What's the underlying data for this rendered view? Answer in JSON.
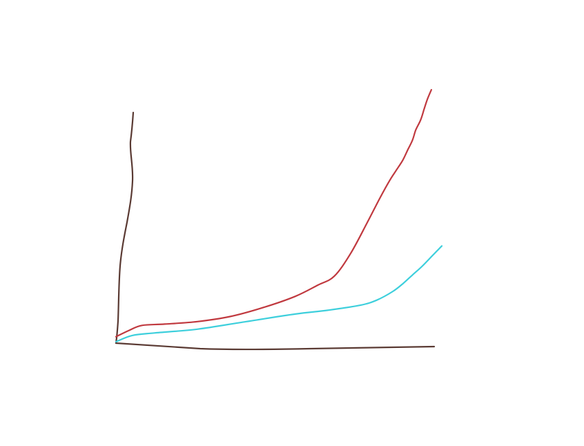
{
  "chart_data": {
    "type": "line",
    "title": "",
    "xlabel": "",
    "ylabel": "",
    "grid": false,
    "legend": "none",
    "xlim": [
      0,
      1
    ],
    "ylim": [
      0,
      1
    ],
    "colors": {
      "axis": "#5a3a33",
      "red_series": "#c0393f",
      "cyan_series": "#3dcfdc"
    },
    "series": [
      {
        "color_key": "red_series",
        "x": [
          0.0,
          0.04,
          0.08,
          0.15,
          0.25,
          0.35,
          0.45,
          0.55,
          0.62,
          0.67,
          0.72,
          0.77,
          0.81,
          0.84,
          0.86,
          0.88,
          0.895,
          0.91,
          0.92,
          0.935,
          0.945,
          0.955,
          0.968
        ],
        "y": [
          0.02,
          0.045,
          0.065,
          0.07,
          0.08,
          0.1,
          0.135,
          0.18,
          0.225,
          0.26,
          0.35,
          0.47,
          0.57,
          0.64,
          0.68,
          0.72,
          0.76,
          0.8,
          0.84,
          0.88,
          0.92,
          0.96,
          1.0
        ]
      },
      {
        "color_key": "cyan_series",
        "x": [
          0.0,
          0.05,
          0.12,
          0.25,
          0.4,
          0.55,
          0.65,
          0.75,
          0.8,
          0.85,
          0.88,
          0.91,
          0.94,
          0.97,
          1.0
        ],
        "y": [
          0.0,
          0.025,
          0.035,
          0.05,
          0.08,
          0.11,
          0.125,
          0.145,
          0.165,
          0.2,
          0.23,
          0.265,
          0.3,
          0.34,
          0.38
        ]
      }
    ]
  }
}
